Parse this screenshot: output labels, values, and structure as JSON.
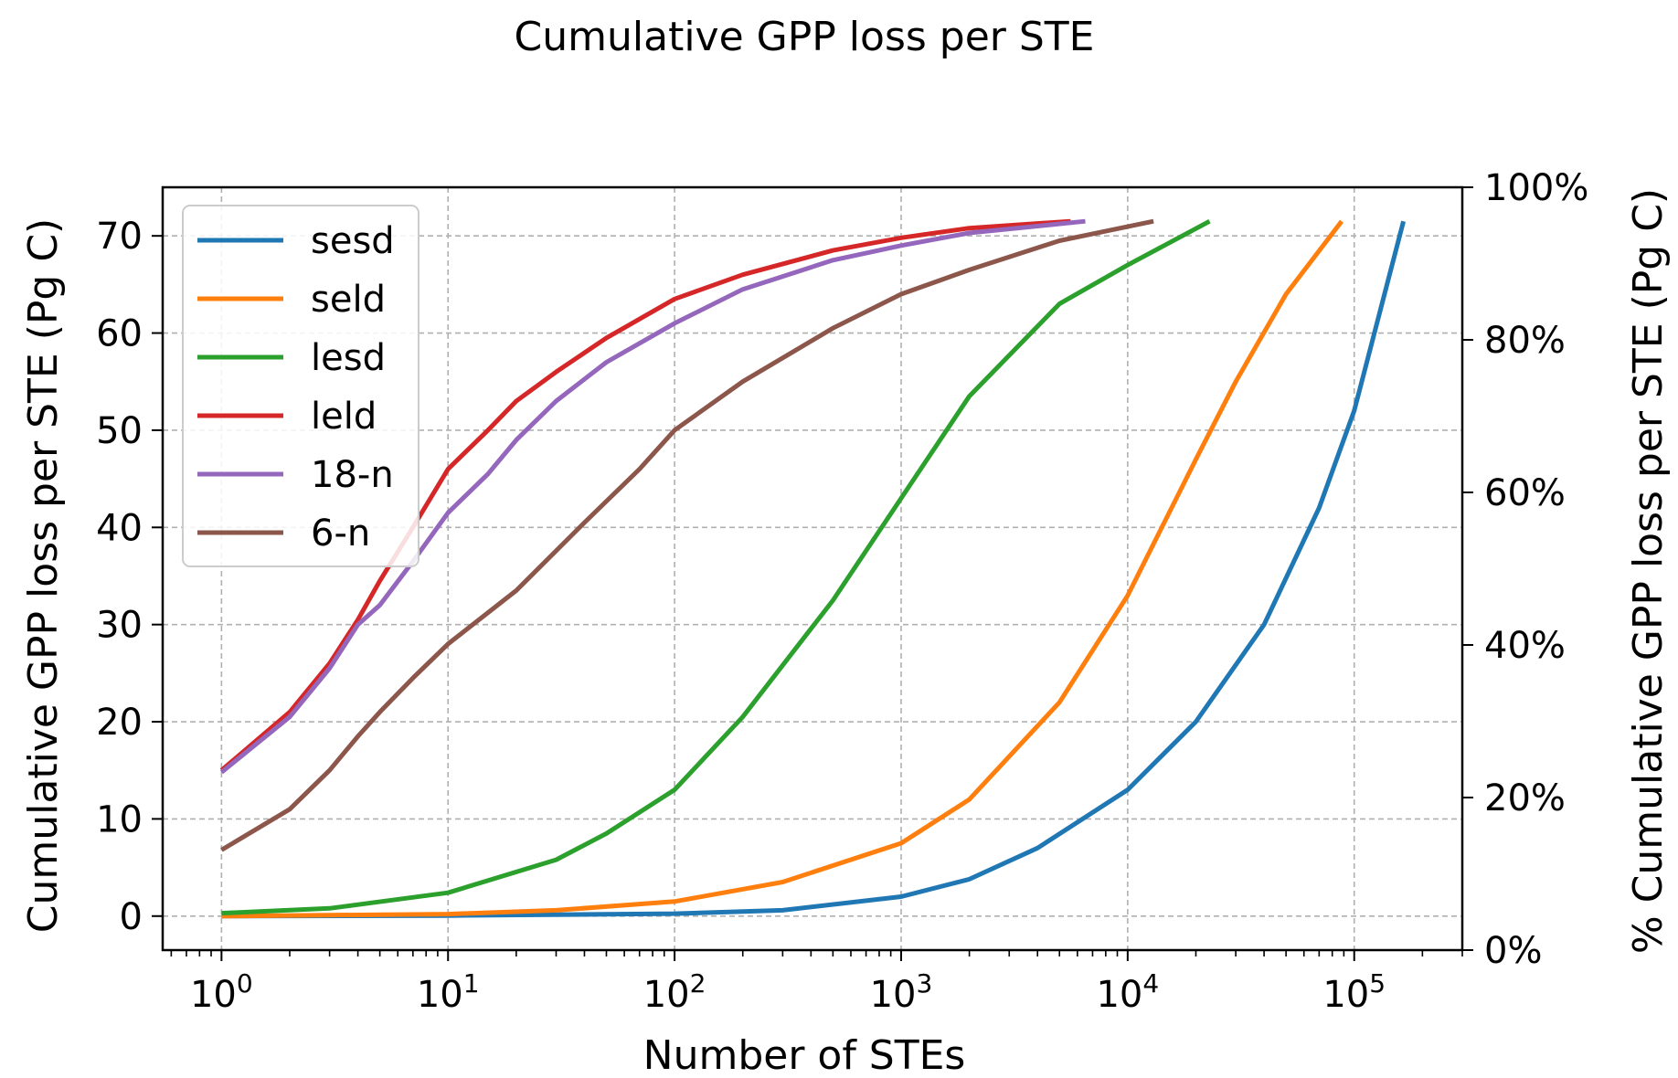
{
  "chart_data": {
    "type": "line",
    "title": "Cumulative GPP loss per STE",
    "xlabel": "Number of STEs",
    "ylabel": "Cumulative GPP loss per STE (Pg C)",
    "y2label": "% Cumulative GPP loss per STE (Pg C)",
    "x_scale": "log",
    "xlim": [
      0.55,
      300000
    ],
    "ylim": [
      -3.5,
      75
    ],
    "y2lim": [
      0,
      100
    ],
    "x_ticks": [
      1,
      10,
      100,
      1000,
      10000,
      100000
    ],
    "x_tick_labels": [
      {
        "base": "10",
        "exp": "0"
      },
      {
        "base": "10",
        "exp": "1"
      },
      {
        "base": "10",
        "exp": "2"
      },
      {
        "base": "10",
        "exp": "3"
      },
      {
        "base": "10",
        "exp": "4"
      },
      {
        "base": "10",
        "exp": "5"
      }
    ],
    "y_ticks": [
      0,
      10,
      20,
      30,
      40,
      50,
      60,
      70
    ],
    "y_tick_labels": [
      "0",
      "10",
      "20",
      "30",
      "40",
      "50",
      "60",
      "70"
    ],
    "y2_ticks": [
      0,
      20,
      40,
      60,
      80,
      100
    ],
    "y2_tick_labels": [
      "0%",
      "20%",
      "40%",
      "60%",
      "80%",
      "100%"
    ],
    "grid": true,
    "legend_position": "top-left",
    "series": [
      {
        "name": "sesd",
        "color": "#1f77b4",
        "x": [
          1,
          10,
          100,
          300,
          1000,
          2000,
          4000,
          10000,
          20000,
          40000,
          70000,
          100000,
          165000
        ],
        "y": [
          0,
          0.05,
          0.25,
          0.6,
          2.0,
          3.8,
          7,
          13,
          20,
          30,
          42,
          52,
          71.5
        ]
      },
      {
        "name": "seld",
        "color": "#ff7f0e",
        "x": [
          1,
          10,
          30,
          100,
          300,
          1000,
          2000,
          5000,
          10000,
          20000,
          30000,
          50000,
          88000
        ],
        "y": [
          0,
          0.2,
          0.6,
          1.5,
          3.5,
          7.5,
          12,
          22,
          33,
          47,
          55,
          64,
          71.5
        ]
      },
      {
        "name": "lesd",
        "color": "#2ca02c",
        "x": [
          1,
          3,
          10,
          30,
          50,
          100,
          200,
          500,
          1000,
          2000,
          5000,
          10000,
          23000
        ],
        "y": [
          0.3,
          0.8,
          2.4,
          5.8,
          8.5,
          13,
          20.5,
          32.5,
          43,
          53.5,
          63,
          67,
          71.5
        ]
      },
      {
        "name": "leld",
        "color": "#d62728",
        "x": [
          1,
          2,
          3,
          4,
          5,
          7,
          10,
          15,
          20,
          30,
          50,
          100,
          200,
          500,
          1000,
          2000,
          5600
        ],
        "y": [
          15,
          21,
          26,
          30.5,
          34.5,
          40,
          46,
          50,
          53,
          56,
          59.5,
          63.5,
          66,
          68.5,
          69.8,
          70.8,
          71.5
        ]
      },
      {
        "name": "18-n",
        "color": "#9467bd",
        "x": [
          1,
          2,
          3,
          4,
          5,
          7,
          10,
          15,
          20,
          30,
          50,
          100,
          200,
          500,
          1000,
          2000,
          6500
        ],
        "y": [
          14.8,
          20.5,
          25.5,
          30,
          32,
          36.5,
          41.5,
          45.5,
          49,
          53,
          57,
          61,
          64.5,
          67.5,
          69,
          70.3,
          71.5
        ]
      },
      {
        "name": "6-n",
        "color": "#8c564b",
        "x": [
          1,
          2,
          3,
          4,
          5,
          7,
          10,
          20,
          40,
          70,
          100,
          200,
          500,
          1000,
          2000,
          5000,
          13000
        ],
        "y": [
          6.8,
          11,
          15,
          18.5,
          21,
          24.5,
          28,
          33.5,
          40.5,
          46,
          50,
          55,
          60.5,
          64,
          66.5,
          69.5,
          71.5
        ]
      }
    ]
  }
}
